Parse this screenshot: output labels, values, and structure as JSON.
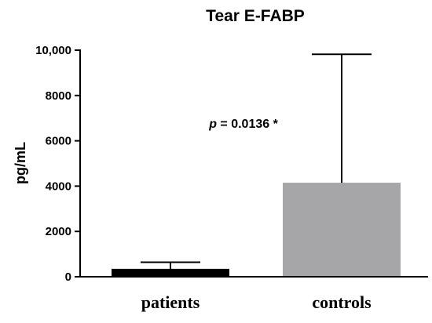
{
  "chart_data": {
    "type": "bar",
    "title": "Tear E-FABP",
    "ylabel": "pg/mL",
    "xlabel": "",
    "categories": [
      "patients",
      "controls"
    ],
    "values": [
      350,
      4150
    ],
    "error_upper": [
      640,
      9820
    ],
    "bar_colors": [
      "#000000",
      "#a6a6a8"
    ],
    "ylim": [
      0,
      10000
    ],
    "yticks": [
      0,
      2000,
      4000,
      6000,
      8000,
      10000
    ],
    "ytick_labels": [
      "0",
      "2000",
      "4000",
      "6000",
      "8000",
      "10,000"
    ],
    "grid": false,
    "annotation": {
      "p_symbol": "p",
      "text": " = 0.0136 *"
    }
  }
}
